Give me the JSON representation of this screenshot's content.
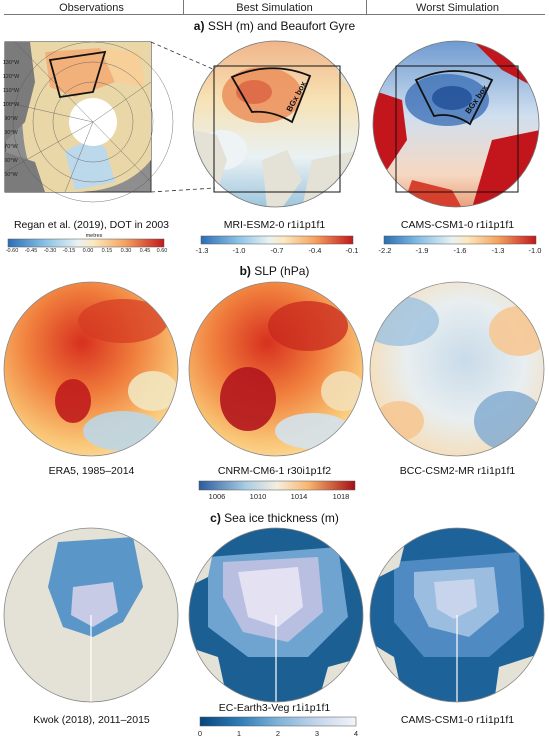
{
  "column_headers": [
    "Observations",
    "Best Simulation",
    "Worst Simulation"
  ],
  "sections": {
    "a_title_letter": "a)",
    "a_title_text": "SSH (m) and Beaufort Gyre",
    "b_title_letter": "b)",
    "b_title_text": "SLP (hPa)",
    "c_title_letter": "c)",
    "c_title_text": "Sea ice thickness (m)"
  },
  "panel_a": {
    "obs_caption": "Regan et al. (2019), DOT in 2003",
    "obs_colorbar_unit": "metres",
    "obs_colorbar_ticks": [
      "-0.60",
      "-0.45",
      "-0.30",
      "-0.15",
      "0.00",
      "0.15",
      "0.30",
      "0.45",
      "0.60"
    ],
    "obs_lon_labels": [
      "130°W",
      "120°W",
      "110°W",
      "100°W",
      "90°W",
      "80°W",
      "70°W",
      "60°W",
      "50°W"
    ],
    "best_caption": "MRI-ESM2-0  r1i1p1f1",
    "best_colorbar_ticks": [
      "-1.3",
      "-1.0",
      "-0.7",
      "-0.4",
      "-0.1"
    ],
    "worst_caption": "CAMS-CSM1-0  r1i1p1f1",
    "worst_colorbar_ticks": [
      "-2.2",
      "-1.9",
      "-1.6",
      "-1.3",
      "-1.0"
    ],
    "box_label": "BGx box"
  },
  "panel_b": {
    "obs_caption": "ERA5, 1985–2014",
    "best_caption": "CNRM-CM6-1  r30i1p1f2",
    "worst_caption": "BCC-CSM2-MR  r1i1p1f1",
    "colorbar_ticks": [
      "1006",
      "1010",
      "1014",
      "1018"
    ]
  },
  "panel_c": {
    "obs_caption": "Kwok (2018), 2011–2015",
    "best_caption": "EC-Earth3-Veg  r1i1p1f1",
    "worst_caption": "CAMS-CSM1-0  r1i1p1f1",
    "colorbar_ticks": [
      "0",
      "1",
      "2",
      "3",
      "4"
    ]
  },
  "colors": {
    "land": "#e4e1d6",
    "land_dark": "#8a8a8a",
    "rule": "#777777"
  }
}
